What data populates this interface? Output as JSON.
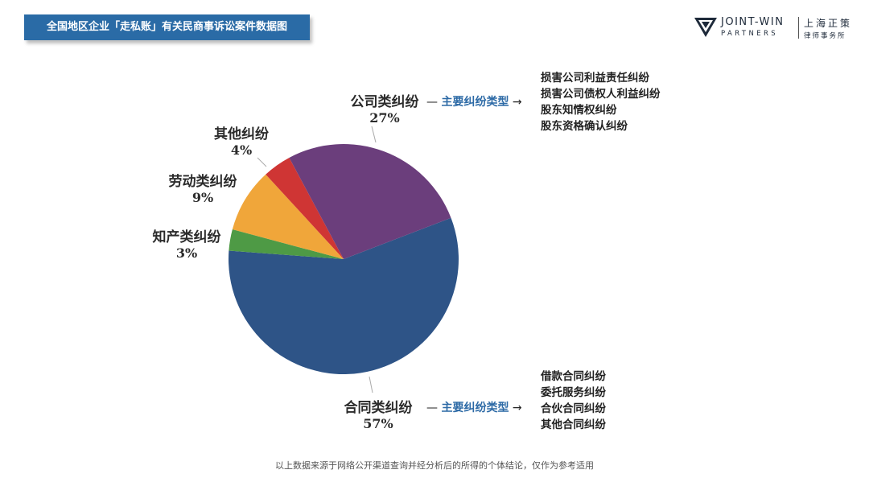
{
  "header": {
    "title": "全国地区企业「走私账」有关民商事诉讼案件数据图"
  },
  "logo": {
    "en_line1": "JOINT-WIN",
    "en_line2": "PARTNERS",
    "cn_line1": "上海正策",
    "cn_line2": "律师事务所"
  },
  "chart_data": {
    "type": "pie",
    "title": "全国地区企业「走私账」有关民商事诉讼案件数据图",
    "slices": [
      {
        "label": "合同类纠纷",
        "value": 57,
        "pct_text": "57%",
        "color": "#2e5487"
      },
      {
        "label": "知产类纠纷",
        "value": 3,
        "pct_text": "3%",
        "color": "#4e9a45"
      },
      {
        "label": "劳动类纠纷",
        "value": 9,
        "pct_text": "9%",
        "color": "#f0a63a"
      },
      {
        "label": "其他纠纷",
        "value": 4,
        "pct_text": "4%",
        "color": "#cf3534"
      },
      {
        "label": "公司类纠纷",
        "value": 27,
        "pct_text": "27%",
        "color": "#6b3e7c"
      }
    ]
  },
  "annotations": {
    "dash": "—",
    "arrow": "→",
    "main_types_label": "主要纠纷类型",
    "company_types": [
      "损害公司利益责任纠纷",
      "损害公司债权人利益纠纷",
      "股东知情权纠纷",
      "股东资格确认纠纷"
    ],
    "contract_types": [
      "借款合同纠纷",
      "委托服务纠纷",
      "合伙合同纠纷",
      "其他合同纠纷"
    ]
  },
  "footnote": "以上数据来源于网络公开渠道查询并经分析后的所得的个体结论，仅作为参考适用"
}
